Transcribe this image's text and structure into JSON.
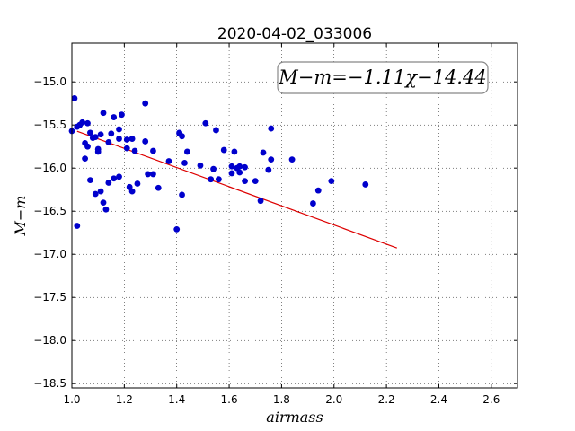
{
  "chart_data": {
    "type": "scatter",
    "title": "2020-04-02_033006",
    "xlabel": "airmass",
    "ylabel": "M−m",
    "annotation": "M−m=−1.11χ−14.44",
    "xlim": [
      1.0,
      2.7
    ],
    "ylim": [
      -18.55,
      -14.55
    ],
    "y_inverted": true,
    "xticks": [
      1.0,
      1.2,
      1.4,
      1.6,
      1.8,
      2.0,
      2.2,
      2.4,
      2.6
    ],
    "xtick_labels": [
      "1.0",
      "1.2",
      "1.4",
      "1.6",
      "1.8",
      "2.0",
      "2.2",
      "2.4",
      "2.6"
    ],
    "yticks": [
      -15.0,
      -15.5,
      -16.0,
      -16.5,
      -17.0,
      -17.5,
      -18.0,
      -18.5
    ],
    "ytick_labels": [
      "−15.0",
      "−15.5",
      "−16.0",
      "−16.5",
      "−17.0",
      "−17.5",
      "−18.0",
      "−18.5"
    ],
    "grid": true,
    "points_color": "#0000cc",
    "fit_color": "#dd0000",
    "fit": {
      "slope": -1.11,
      "intercept": -14.44,
      "x_range": [
        1.02,
        2.24
      ]
    },
    "points": [
      [
        1.0,
        -15.57
      ],
      [
        1.01,
        -15.19
      ],
      [
        1.02,
        -15.52
      ],
      [
        1.02,
        -16.67
      ],
      [
        1.03,
        -15.5
      ],
      [
        1.04,
        -15.47
      ],
      [
        1.05,
        -15.71
      ],
      [
        1.05,
        -15.89
      ],
      [
        1.06,
        -15.75
      ],
      [
        1.06,
        -15.48
      ],
      [
        1.07,
        -16.14
      ],
      [
        1.07,
        -15.59
      ],
      [
        1.08,
        -15.65
      ],
      [
        1.09,
        -15.64
      ],
      [
        1.09,
        -16.3
      ],
      [
        1.1,
        -15.78
      ],
      [
        1.1,
        -15.81
      ],
      [
        1.11,
        -16.27
      ],
      [
        1.11,
        -15.61
      ],
      [
        1.12,
        -15.36
      ],
      [
        1.12,
        -16.4
      ],
      [
        1.13,
        -16.48
      ],
      [
        1.14,
        -15.7
      ],
      [
        1.14,
        -16.17
      ],
      [
        1.15,
        -15.6
      ],
      [
        1.16,
        -16.12
      ],
      [
        1.16,
        -15.41
      ],
      [
        1.18,
        -16.1
      ],
      [
        1.18,
        -15.55
      ],
      [
        1.18,
        -15.66
      ],
      [
        1.19,
        -15.38
      ],
      [
        1.21,
        -15.77
      ],
      [
        1.21,
        -15.67
      ],
      [
        1.22,
        -16.22
      ],
      [
        1.23,
        -16.27
      ],
      [
        1.23,
        -15.66
      ],
      [
        1.24,
        -15.8
      ],
      [
        1.25,
        -16.18
      ],
      [
        1.28,
        -15.25
      ],
      [
        1.28,
        -15.69
      ],
      [
        1.29,
        -16.07
      ],
      [
        1.31,
        -15.8
      ],
      [
        1.31,
        -16.07
      ],
      [
        1.33,
        -16.23
      ],
      [
        1.37,
        -15.92
      ],
      [
        1.4,
        -16.71
      ],
      [
        1.41,
        -15.59
      ],
      [
        1.41,
        -15.6
      ],
      [
        1.42,
        -15.63
      ],
      [
        1.42,
        -16.31
      ],
      [
        1.43,
        -15.94
      ],
      [
        1.44,
        -15.81
      ],
      [
        1.49,
        -15.97
      ],
      [
        1.51,
        -15.48
      ],
      [
        1.53,
        -16.13
      ],
      [
        1.54,
        -16.01
      ],
      [
        1.55,
        -15.56
      ],
      [
        1.56,
        -16.13
      ],
      [
        1.58,
        -15.79
      ],
      [
        1.61,
        -15.98
      ],
      [
        1.61,
        -16.06
      ],
      [
        1.62,
        -15.81
      ],
      [
        1.63,
        -16.0
      ],
      [
        1.64,
        -16.05
      ],
      [
        1.64,
        -15.98
      ],
      [
        1.66,
        -15.99
      ],
      [
        1.66,
        -16.15
      ],
      [
        1.7,
        -16.15
      ],
      [
        1.72,
        -16.38
      ],
      [
        1.73,
        -15.82
      ],
      [
        1.75,
        -16.02
      ],
      [
        1.76,
        -15.9
      ],
      [
        1.76,
        -15.54
      ],
      [
        1.84,
        -15.9
      ],
      [
        1.92,
        -16.41
      ],
      [
        1.94,
        -16.26
      ],
      [
        1.99,
        -16.15
      ],
      [
        2.12,
        -16.19
      ]
    ]
  }
}
